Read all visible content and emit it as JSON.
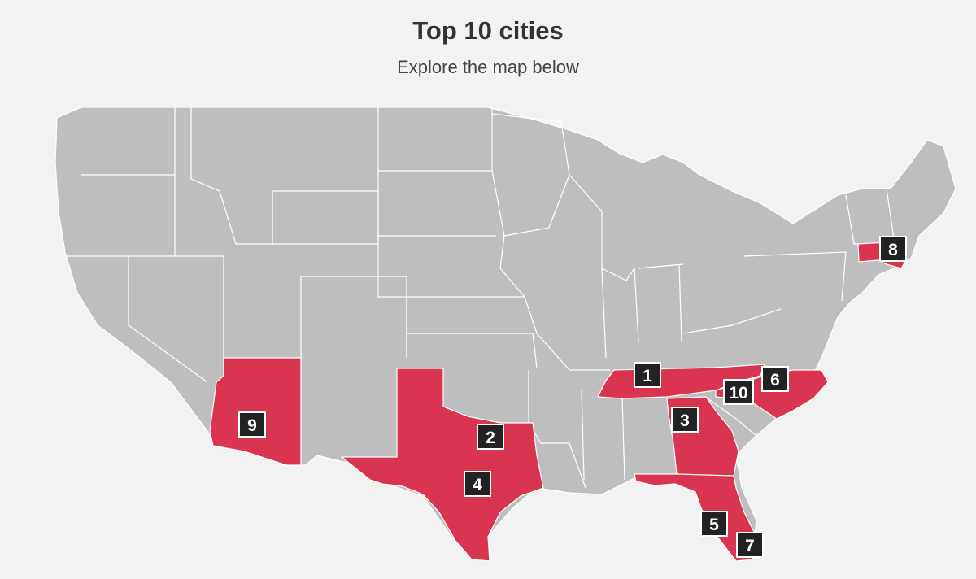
{
  "header": {
    "title": "Top 10 cities",
    "subtitle": "Explore the map below"
  },
  "colors": {
    "background": "#f2f2f2",
    "state_default": "#bebebe",
    "state_highlight": "#d93550",
    "marker_fill": "#222222",
    "marker_text": "#ffffff"
  },
  "highlighted_states": [
    "Arizona",
    "Texas",
    "Tennessee",
    "Georgia",
    "Florida",
    "North Carolina",
    "Massachusetts"
  ],
  "markers": [
    {
      "rank": "1",
      "state": "Tennessee"
    },
    {
      "rank": "2",
      "state": "Texas"
    },
    {
      "rank": "3",
      "state": "Georgia"
    },
    {
      "rank": "4",
      "state": "Texas"
    },
    {
      "rank": "5",
      "state": "Florida"
    },
    {
      "rank": "6",
      "state": "North Carolina"
    },
    {
      "rank": "7",
      "state": "Florida"
    },
    {
      "rank": "8",
      "state": "Massachusetts"
    },
    {
      "rank": "9",
      "state": "Arizona"
    },
    {
      "rank": "10",
      "state": "Tennessee"
    }
  ]
}
